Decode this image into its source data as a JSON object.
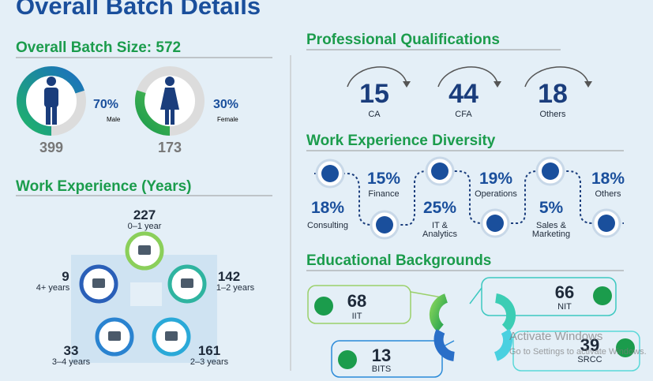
{
  "title": "Overall Batch Details",
  "batch_size": {
    "heading": "Overall Batch Size: 572",
    "male": {
      "percent": {
        "value": 70,
        "label": "70%"
      },
      "label": "Male",
      "count": "399"
    },
    "female": {
      "percent": {
        "value": 30,
        "label": "30%"
      },
      "label": "Female",
      "count": "173"
    }
  },
  "work_experience_years": {
    "heading": "Work Experience (Years)",
    "groups": [
      {
        "count": "227",
        "range": "0–1 year"
      },
      {
        "count": "142",
        "range": "1–2 years"
      },
      {
        "count": "161",
        "range": "2–3 years"
      },
      {
        "count": "33",
        "range": "3–4 years"
      },
      {
        "count": "9",
        "range": "4+ years"
      }
    ]
  },
  "professional_qualifications": {
    "heading": "Professional Qualifications",
    "items": [
      {
        "count": "15",
        "label": "CA"
      },
      {
        "count": "44",
        "label": "CFA"
      },
      {
        "count": "18",
        "label": "Others"
      }
    ]
  },
  "work_experience_diversity": {
    "heading": "Work Experience Diversity",
    "items": [
      {
        "percent": "18%",
        "label": "Consulting"
      },
      {
        "percent": "15%",
        "label": "Finance"
      },
      {
        "percent": "25%",
        "label": "IT & Analytics"
      },
      {
        "percent": "19%",
        "label": "Operations"
      },
      {
        "percent": "5%",
        "label": "Sales & Marketing"
      },
      {
        "percent": "18%",
        "label": "Others"
      }
    ]
  },
  "educational_backgrounds": {
    "heading": "Educational Backgrounds",
    "items": [
      {
        "count": "68",
        "label": "IIT"
      },
      {
        "count": "13",
        "label": "BITS"
      },
      {
        "count": "66",
        "label": "NIT"
      },
      {
        "count": "39",
        "label": "SRCC"
      }
    ]
  },
  "watermark": {
    "line1": "Activate Windows",
    "line2": "Go to Settings to activate Windows."
  }
}
